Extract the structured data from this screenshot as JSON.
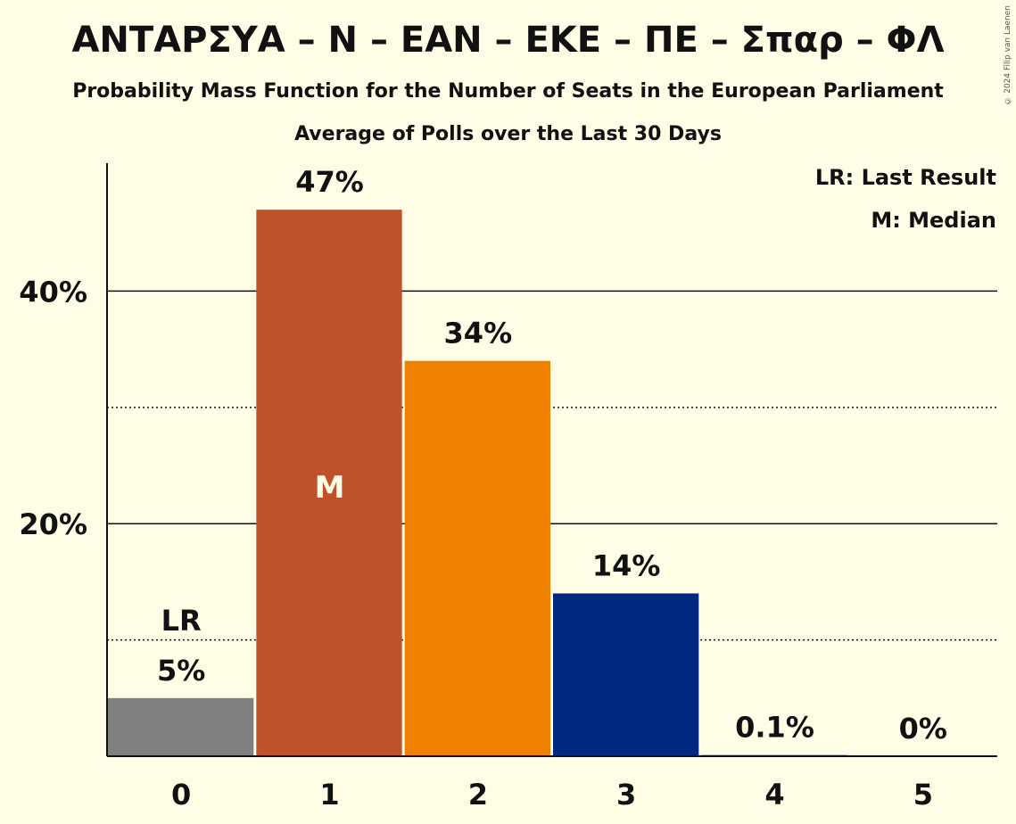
{
  "title": "ΑΝΤΑΡΣΥΑ – Ν – ΕΑΝ – ΕΚΕ – ΠΕ – Σπαρ – ΦΛ",
  "subtitle": "Probability Mass Function for the Number of Seats in the European Parliament",
  "subtitle2": "Average of Polls over the Last 30 Days",
  "copyright": "© 2024 Filip van Laenen",
  "legend": {
    "lr": "LR: Last Result",
    "median": "M: Median"
  },
  "chart_data": {
    "type": "bar",
    "categories": [
      "0",
      "1",
      "2",
      "3",
      "4",
      "5"
    ],
    "values": [
      5,
      47,
      34,
      14,
      0.1,
      0
    ],
    "value_labels": [
      "5%",
      "47%",
      "34%",
      "14%",
      "0.1%",
      "0%"
    ],
    "colors": [
      "#808080",
      "#c0522a",
      "#f08000",
      "#00287f",
      "#00287f",
      "#00287f"
    ],
    "ylim": [
      0,
      51
    ],
    "yticks": [
      20,
      40
    ],
    "ytick_labels": [
      "20%",
      "40%"
    ],
    "dotted_gridlines": [
      10,
      30
    ],
    "last_result_index": 0,
    "last_result_label": "LR",
    "median_index": 1,
    "median_label": "M"
  }
}
